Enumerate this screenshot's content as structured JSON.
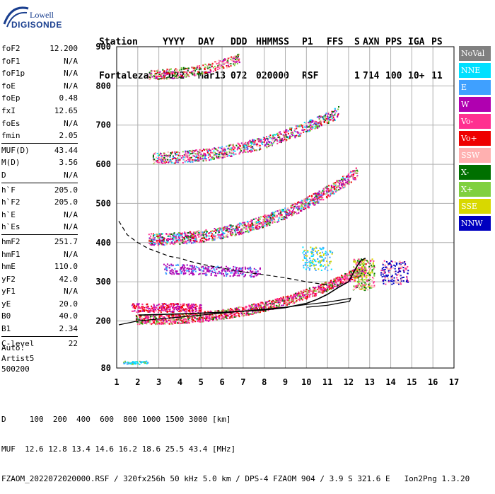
{
  "logo": {
    "line1": "Lowell",
    "line2": "DIGISONDE"
  },
  "header": {
    "row1": [
      "Station",
      "YYYY",
      "DAY",
      "DDD",
      "HHMMSS",
      "P1",
      "FFS",
      "S",
      "AXN",
      "PPS",
      "IGA",
      "PS"
    ],
    "row2": [
      "Fortaleza",
      "2022",
      "Mar13",
      "072",
      "020000",
      "RSF",
      "",
      "1",
      "714",
      "100",
      "10+",
      "11"
    ]
  },
  "params": [
    {
      "label": "foF2",
      "value": "12.200"
    },
    {
      "label": "foF1",
      "value": "N/A"
    },
    {
      "label": "foF1p",
      "value": "N/A"
    },
    {
      "label": "foE",
      "value": "N/A"
    },
    {
      "label": "foEp",
      "value": "0.48"
    },
    {
      "label": "fxI",
      "value": "12.65"
    },
    {
      "label": "foEs",
      "value": "N/A"
    },
    {
      "label": "fmin",
      "value": "2.05"
    },
    {
      "sep": true
    },
    {
      "label": "MUF(D)",
      "value": "43.44"
    },
    {
      "label": "M(D)",
      "value": "3.56"
    },
    {
      "label": "D",
      "value": "N/A"
    },
    {
      "sep": true
    },
    {
      "label": "h`F",
      "value": "205.0"
    },
    {
      "label": "h`F2",
      "value": "205.0"
    },
    {
      "label": "h`E",
      "value": "N/A"
    },
    {
      "label": "h`Es",
      "value": "N/A"
    },
    {
      "sep": true
    },
    {
      "label": "hmF2",
      "value": "251.7"
    },
    {
      "label": "hmF1",
      "value": "N/A"
    },
    {
      "label": "hmE",
      "value": "110.0"
    },
    {
      "label": "yF2",
      "value": "42.0"
    },
    {
      "label": "yF1",
      "value": "N/A"
    },
    {
      "label": "yE",
      "value": "20.0"
    },
    {
      "label": "B0",
      "value": "40.0"
    },
    {
      "label": "B1",
      "value": "2.34"
    },
    {
      "sep": true
    },
    {
      "label": "C-level",
      "value": "22"
    }
  ],
  "autoscaling": [
    "Auto:",
    "Artist5",
    "500200"
  ],
  "legend": [
    {
      "label": "NoVal",
      "color": "#808080"
    },
    {
      "label": "NNE",
      "color": "#00e0ff"
    },
    {
      "label": "E",
      "color": "#3fa0ff"
    },
    {
      "label": "W",
      "color": "#b000b0"
    },
    {
      "label": "Vo-",
      "color": "#ff3090"
    },
    {
      "label": "Vo+",
      "color": "#ee0000"
    },
    {
      "label": "SSW",
      "color": "#ffb0b0"
    },
    {
      "label": "X-",
      "color": "#007000"
    },
    {
      "label": "X+",
      "color": "#80d040"
    },
    {
      "label": "SSE",
      "color": "#d8d800"
    },
    {
      "label": "NNW",
      "color": "#0000c0"
    }
  ],
  "bottom": {
    "d_row": "D     100  200  400  600  800 1000 1500 3000 [km]",
    "muf_row": "MUF  12.6 12.8 13.4 14.6 16.2 18.6 25.5 43.4 [MHz]",
    "footer_left": "FZAOM_2022072020000.RSF / 320fx256h 50 kHz 5.0 km / DPS-4 FZAOM 904 / 3.9 S 321.6 E",
    "footer_right": "Ion2Png 1.3.20"
  },
  "chart_data": {
    "type": "scatter",
    "xlim": [
      1,
      17
    ],
    "ylim": [
      80,
      900
    ],
    "x_ticks": [
      1,
      2,
      3,
      4,
      5,
      6,
      7,
      8,
      9,
      10,
      11,
      12,
      13,
      14,
      15,
      16,
      17
    ],
    "y_ticks": [
      80,
      200,
      300,
      400,
      500,
      600,
      700,
      800,
      900
    ],
    "grid": true,
    "legend_position": "right",
    "traces": [
      {
        "name": "dashed",
        "points": [
          [
            1.1,
            455
          ],
          [
            1.5,
            420
          ],
          [
            2,
            400
          ],
          [
            2.5,
            385
          ],
          [
            3,
            375
          ],
          [
            3.5,
            365
          ],
          [
            4,
            360
          ],
          [
            4.5,
            352
          ],
          [
            5,
            345
          ],
          [
            6,
            335
          ],
          [
            7,
            325
          ],
          [
            8,
            318
          ],
          [
            9,
            310
          ],
          [
            9.5,
            305
          ],
          [
            10,
            300
          ],
          [
            10.5,
            296
          ],
          [
            11,
            292
          ]
        ]
      },
      {
        "name": "solid",
        "points": [
          [
            1.1,
            190
          ],
          [
            2,
            200
          ],
          [
            3,
            205
          ],
          [
            4,
            210
          ],
          [
            5,
            215
          ],
          [
            6,
            220
          ],
          [
            7,
            225
          ],
          [
            8,
            230
          ],
          [
            9,
            235
          ],
          [
            10,
            242
          ],
          [
            11,
            248
          ],
          [
            11.8,
            255
          ],
          [
            12.1,
            258
          ],
          [
            12.05,
            250
          ],
          [
            11.6,
            246
          ],
          [
            11,
            240
          ],
          [
            10,
            235
          ]
        ]
      },
      {
        "name": "profile",
        "points": [
          [
            2.05,
            215
          ],
          [
            4,
            218
          ],
          [
            6,
            222
          ],
          [
            8,
            228
          ],
          [
            9,
            234
          ],
          [
            10,
            245
          ],
          [
            10.5,
            255
          ],
          [
            11,
            268
          ],
          [
            11.5,
            285
          ],
          [
            12,
            300
          ],
          [
            12.2,
            320
          ],
          [
            12.4,
            340
          ],
          [
            12.6,
            355
          ],
          [
            12.8,
            360
          ]
        ]
      }
    ]
  }
}
